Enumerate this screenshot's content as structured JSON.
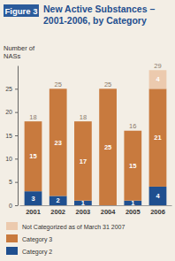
{
  "chart_data": {
    "type": "bar",
    "stacked": true,
    "data_labels": true,
    "grid": false,
    "figure": "Figure 3",
    "title": "New Active Substances – 2001-2006, by Category",
    "ylabel": "Number of NASs",
    "categories": [
      "2001",
      "2002",
      "2003",
      "2004",
      "2005",
      "2006"
    ],
    "series": [
      {
        "name": "Category 2",
        "color": "#1f4f8f",
        "values": [
          3,
          2,
          1,
          null,
          1,
          4
        ]
      },
      {
        "name": "Category 3",
        "color": "#c87a3e",
        "values": [
          15,
          23,
          17,
          25,
          15,
          21
        ]
      },
      {
        "name": "Not Categorized as of March 31 2007",
        "color": "#eccaae",
        "values": [
          null,
          null,
          null,
          null,
          null,
          4
        ]
      }
    ],
    "totals": [
      18,
      25,
      18,
      25,
      16,
      29
    ],
    "ylim": [
      0,
      30
    ],
    "yticks": [
      0,
      5,
      10,
      15,
      20,
      25
    ]
  }
}
